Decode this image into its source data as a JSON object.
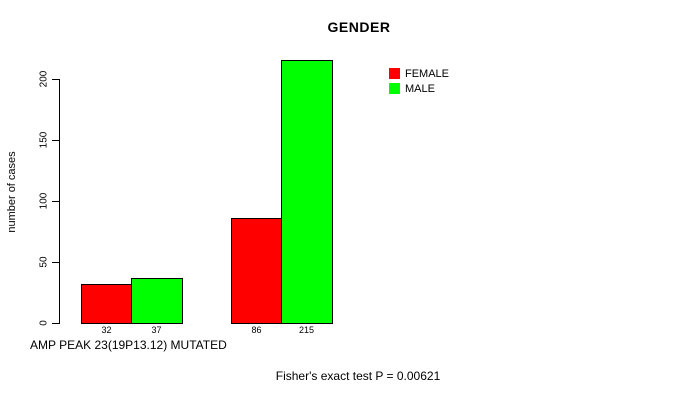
{
  "title": "GENDER",
  "y_axis": {
    "label": "number of cases",
    "ticks": [
      0,
      50,
      100,
      150,
      200
    ]
  },
  "x_label": "AMP PEAK 23(19P13.12) MUTATED",
  "footer": "Fisher's exact test P = 0.00621",
  "colors": {
    "female": "#FF0000",
    "male": "#00FF00",
    "axis": "#000000",
    "background": "#FFFFFF"
  },
  "chart_data": {
    "type": "bar",
    "title": "GENDER",
    "xlabel": "AMP PEAK 23(19P13.12) MUTATED",
    "ylabel": "number of cases",
    "ylim": [
      0,
      215
    ],
    "yticks": [
      0,
      50,
      100,
      150,
      200
    ],
    "grid": false,
    "legend_position": "top-right",
    "categories": [
      "",
      ""
    ],
    "series": [
      {
        "name": "FEMALE",
        "color": "#FF0000",
        "values": [
          32,
          86
        ]
      },
      {
        "name": "MALE",
        "color": "#00FF00",
        "values": [
          37,
          215
        ]
      }
    ],
    "bar_value_labels": [
      [
        32,
        37
      ],
      [
        86,
        215
      ]
    ],
    "annotation": "Fisher's exact test P = 0.00621"
  }
}
